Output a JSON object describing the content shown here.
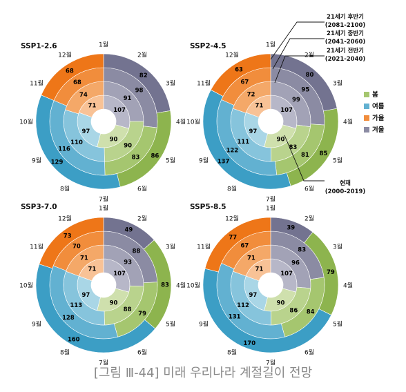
{
  "caption": "[그림 Ⅲ-44] 미래 우리나라 계절길이 전망",
  "colors": {
    "spring": [
      "#cfe0ad",
      "#b9d38d",
      "#a5c66f",
      "#8db44e"
    ],
    "summer": [
      "#a9d6e6",
      "#86c4dc",
      "#62b1d1",
      "#3c9ec5"
    ],
    "autumn": [
      "#f8c296",
      "#f4a868",
      "#f18d3c",
      "#ee7618"
    ],
    "winter": [
      "#b7b7c8",
      "#a2a2b6",
      "#8b8ba3",
      "#737390"
    ],
    "label_dark": "#000000",
    "label_light": "#ffffff"
  },
  "month_labels": [
    "1월",
    "2월",
    "3월",
    "4월",
    "5월",
    "6월",
    "7월",
    "8월",
    "9월",
    "10월",
    "11월",
    "12월"
  ],
  "legend": [
    {
      "key": "spring",
      "label": "봄"
    },
    {
      "key": "summer",
      "label": "여름"
    },
    {
      "key": "autumn",
      "label": "가을"
    },
    {
      "key": "winter",
      "label": "겨울"
    }
  ],
  "annotations": {
    "late": {
      "name": "21세기 후반기",
      "period": "(2081-2100)"
    },
    "mid": {
      "name": "21세기 중반기",
      "period": "(2041-2060)"
    },
    "early": {
      "name": "21세기 전반기",
      "period": "(2021-2040)"
    },
    "present": {
      "name": "현재",
      "period": "(2000-2019)"
    }
  },
  "chart_data": [
    {
      "type": "pie",
      "title": "SSP1-2.6",
      "rings": [
        "현재 (2000-2019)",
        "21세기 전반기 (2021-2040)",
        "21세기 중반기 (2041-2060)",
        "21세기 후반기 (2081-2100)"
      ],
      "spring": [
        90,
        90,
        83,
        86
      ],
      "summer": [
        97,
        110,
        116,
        129
      ],
      "autumn": [
        71,
        74,
        68,
        68
      ],
      "winter": [
        107,
        91,
        98,
        82
      ]
    },
    {
      "type": "pie",
      "title": "SSP2-4.5",
      "rings": [
        "현재 (2000-2019)",
        "21세기 전반기 (2021-2040)",
        "21세기 중반기 (2041-2060)",
        "21세기 후반기 (2081-2100)"
      ],
      "spring": [
        90,
        83,
        81,
        85
      ],
      "summer": [
        97,
        111,
        122,
        137
      ],
      "autumn": [
        71,
        72,
        67,
        63
      ],
      "winter": [
        107,
        99,
        95,
        80
      ]
    },
    {
      "type": "pie",
      "title": "SSP3-7.0",
      "rings": [
        "현재 (2000-2019)",
        "21세기 전반기 (2021-2040)",
        "21세기 중반기 (2041-2060)",
        "21세기 후반기 (2081-2100)"
      ],
      "spring": [
        90,
        88,
        79,
        83
      ],
      "summer": [
        97,
        113,
        128,
        160
      ],
      "autumn": [
        71,
        71,
        70,
        73
      ],
      "winter": [
        107,
        93,
        88,
        49
      ]
    },
    {
      "type": "pie",
      "title": "SSP5-8.5",
      "rings": [
        "현재 (2000-2019)",
        "21세기 전반기 (2021-2040)",
        "21세기 중반기 (2041-2060)",
        "21세기 후반기 (2081-2100)"
      ],
      "spring": [
        90,
        86,
        84,
        79
      ],
      "summer": [
        97,
        112,
        131,
        170
      ],
      "autumn": [
        71,
        71,
        67,
        77
      ],
      "winter": [
        107,
        96,
        83,
        39
      ]
    }
  ]
}
